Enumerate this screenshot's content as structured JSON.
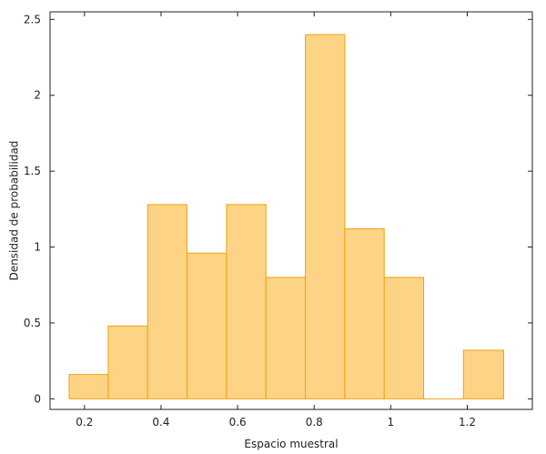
{
  "chart_data": {
    "type": "bar",
    "subtype": "histogram",
    "xlabel": "Espacio muestral",
    "ylabel": "Densidad de probabilidad",
    "bin_edges": [
      0.16,
      0.262,
      0.365,
      0.468,
      0.571,
      0.674,
      0.777,
      0.88,
      0.983,
      1.086,
      1.19,
      1.295
    ],
    "values": [
      0.16,
      0.48,
      1.28,
      0.96,
      1.28,
      0.8,
      2.4,
      1.12,
      0.8,
      0.0,
      0.32
    ],
    "xlim": [
      0.11,
      1.37
    ],
    "ylim": [
      -0.07,
      2.55
    ],
    "xticks": [
      0.2,
      0.4,
      0.6,
      0.8,
      1.0,
      1.2
    ],
    "xtick_labels": [
      "0.2",
      "0.4",
      "0.6",
      "0.8",
      "1",
      "1.2"
    ],
    "yticks": [
      0,
      0.5,
      1.0,
      1.5,
      2.0,
      2.5
    ],
    "ytick_labels": [
      "0",
      "0.5",
      "1",
      "1.5",
      "2",
      "2.5"
    ],
    "colors": {
      "fill": "#fdd385",
      "edge": "#f0a30a"
    },
    "grid": false,
    "legend": "none"
  }
}
